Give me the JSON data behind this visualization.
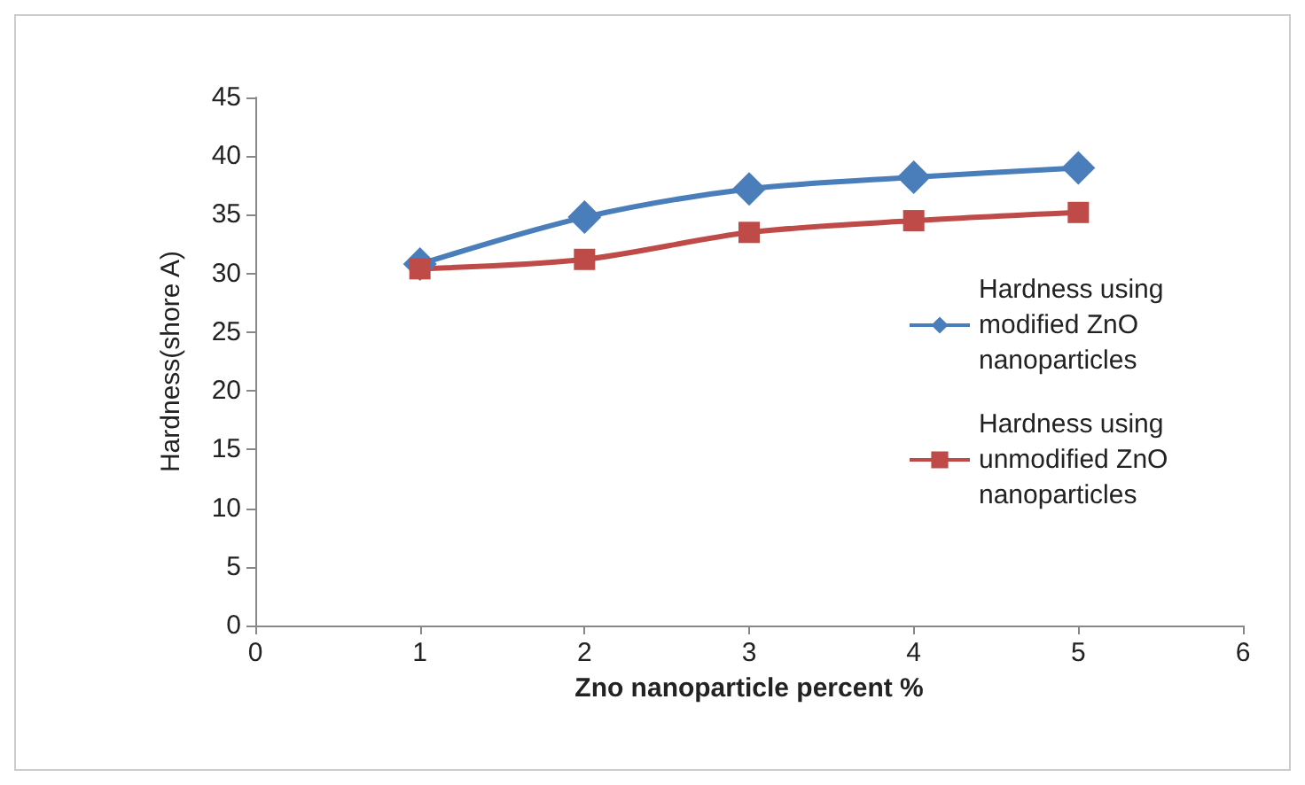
{
  "chart_data": {
    "type": "line",
    "xlabel": "Zno nanoparticle percent %",
    "ylabel": "Hardness(shore A)",
    "x": [
      1,
      2,
      3,
      4,
      5
    ],
    "xlim": [
      0,
      6
    ],
    "xticks": [
      0,
      1,
      2,
      3,
      4,
      5,
      6
    ],
    "ylim": [
      0,
      45
    ],
    "yticks": [
      0,
      5,
      10,
      15,
      20,
      25,
      30,
      35,
      40,
      45
    ],
    "grid": false,
    "legend": "right",
    "series": [
      {
        "name": "Hardness using modified ZnO nanoparticles",
        "color": "#4a7ebb",
        "marker": "diamond",
        "values": [
          30.8,
          34.8,
          37.2,
          38.2,
          39.0
        ]
      },
      {
        "name": "Hardness using unmodified ZnO nanoparticles",
        "color": "#be4b48",
        "marker": "square",
        "values": [
          30.4,
          31.2,
          33.5,
          34.5,
          35.2
        ]
      }
    ]
  }
}
